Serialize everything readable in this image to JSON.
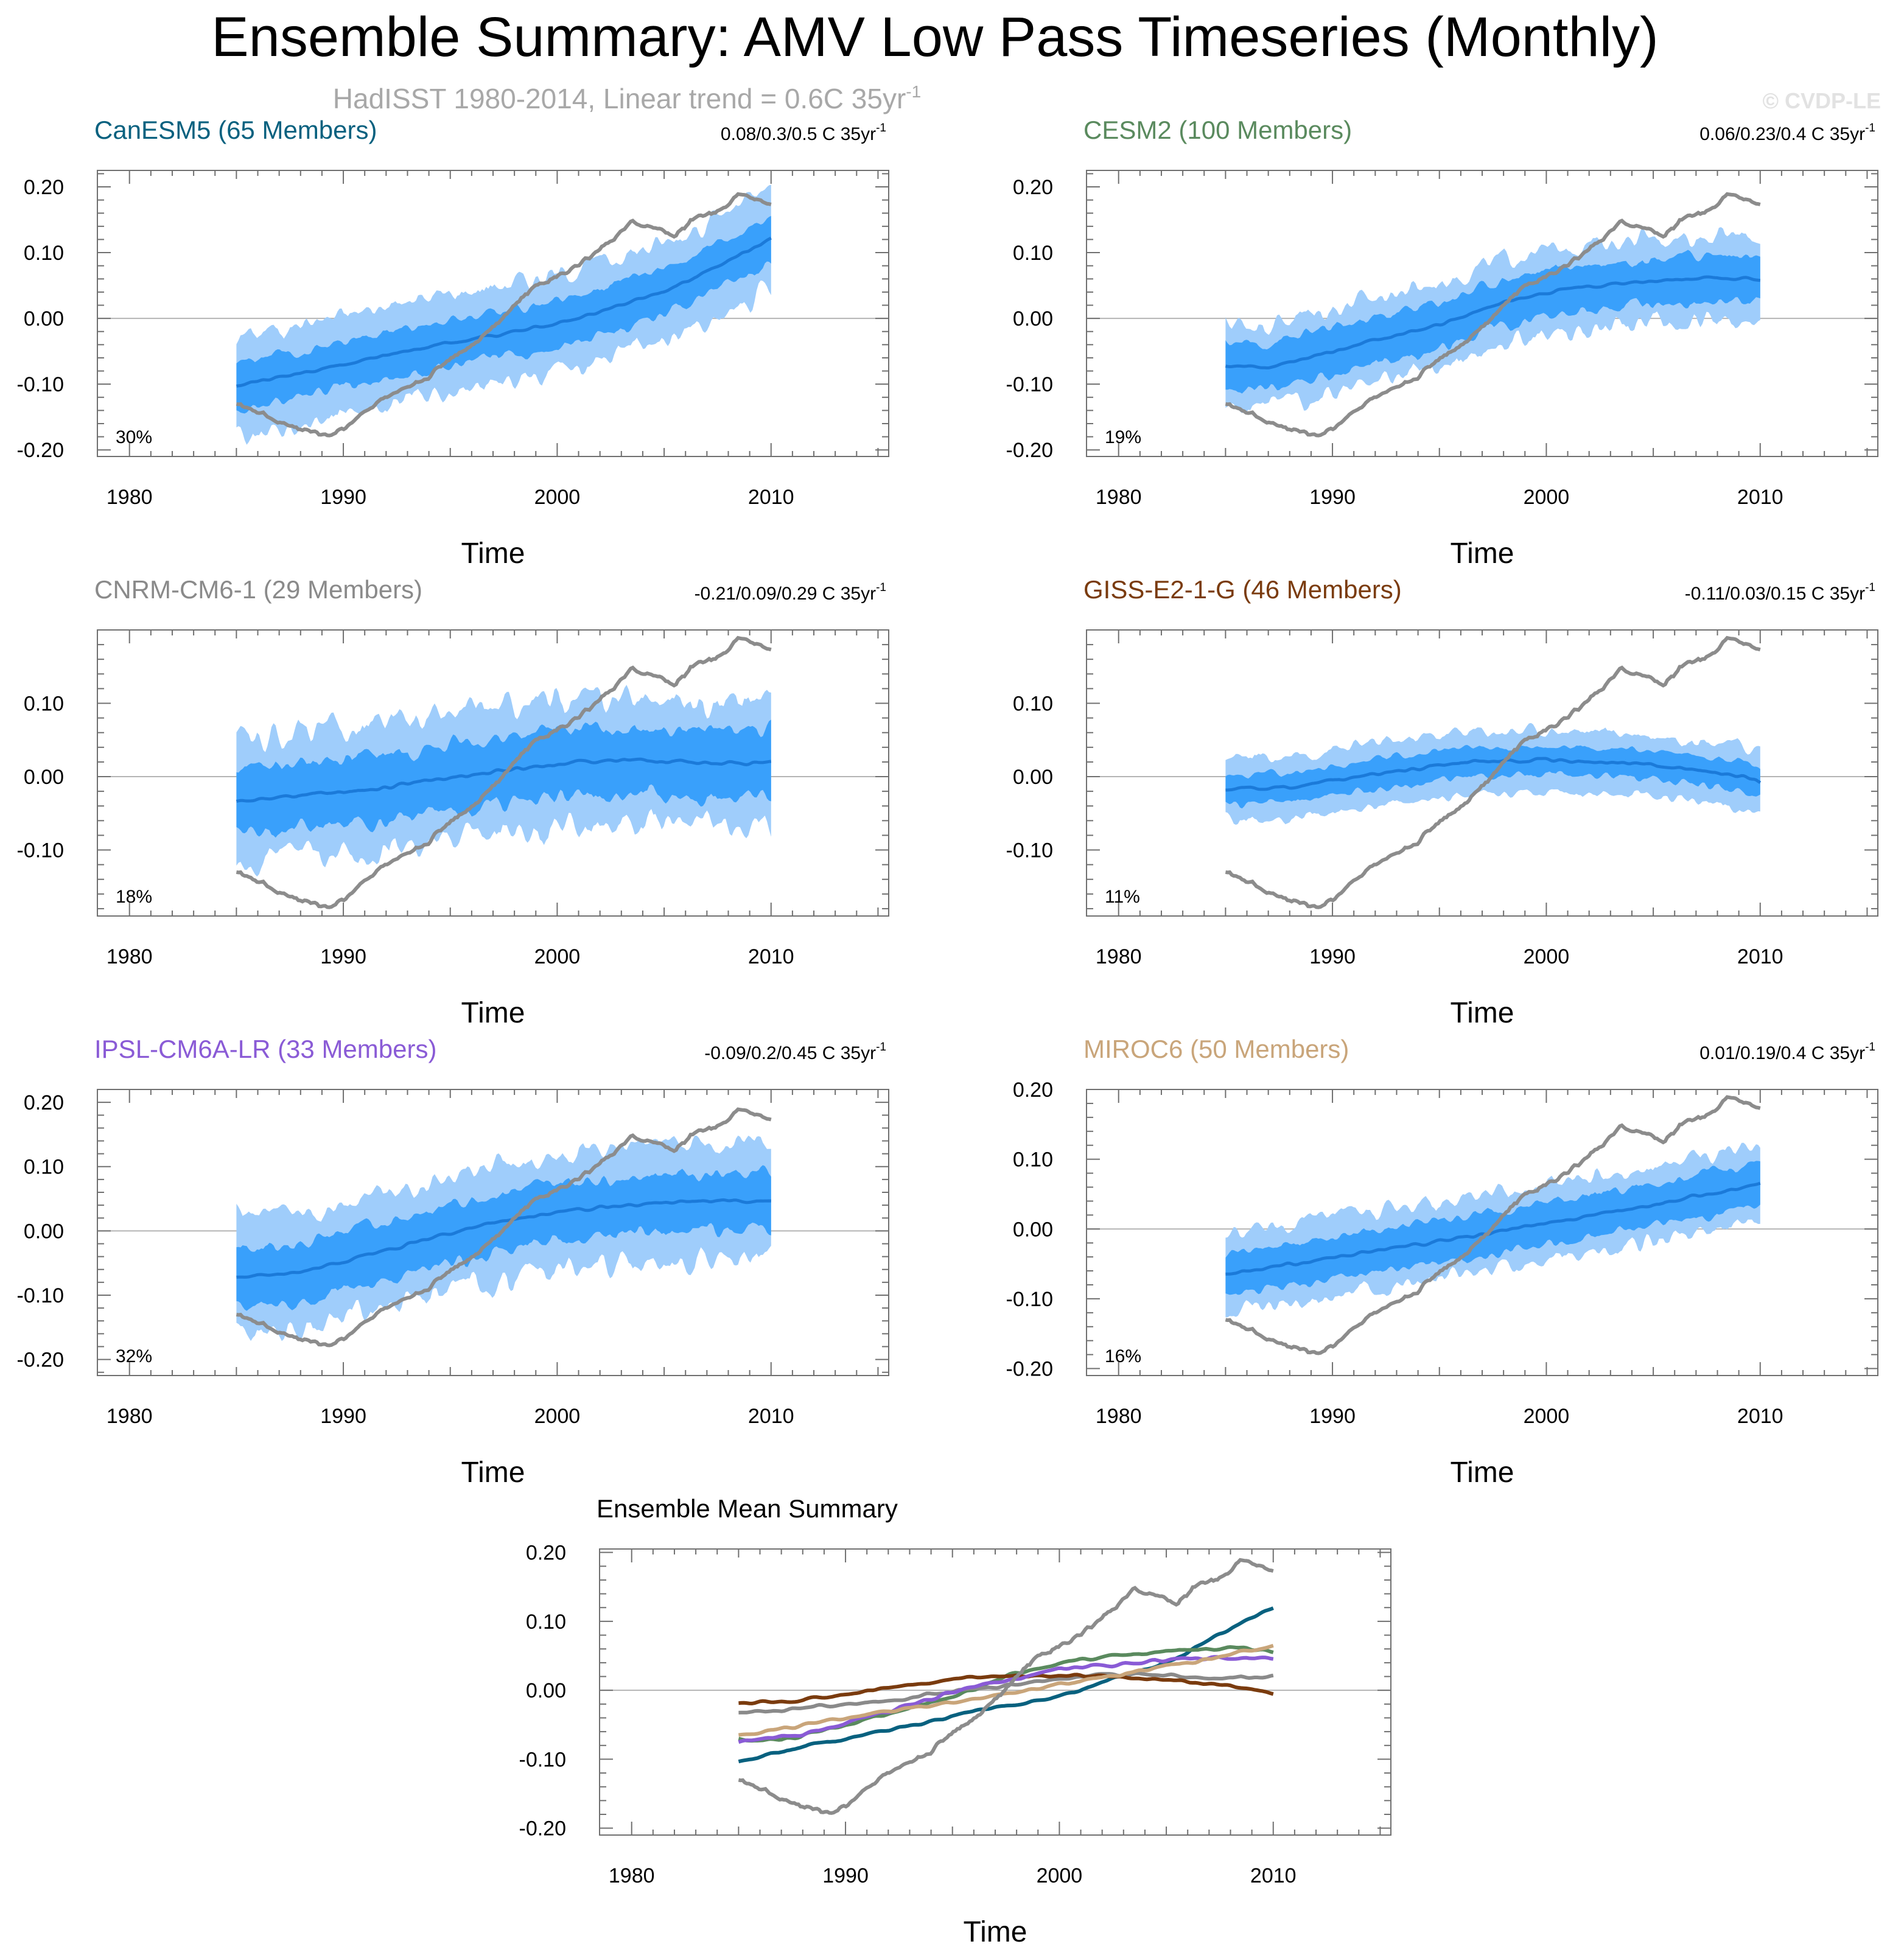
{
  "figure": {
    "title": "Ensemble Summary: AMV Low Pass Timeseries (Monthly)",
    "subtitle_prefix": "HadISST 1980-2014, Linear trend = 0.6C 35yr",
    "subtitle_sup": "-1",
    "watermark": "© CVDP-LE"
  },
  "colors": {
    "band_outer": "#9fcdfb",
    "band_inner": "#39a0fb",
    "ens_mean_line": "#1b7ad9",
    "obs_line": "#8c8c8c",
    "zero_line": "#b4b4b4",
    "axis": "#707070"
  },
  "chart_data": [
    {
      "type": "area",
      "title": "CanESM5 (65 Members)",
      "title_color": "#08617f",
      "trend_text": "0.08/0.3/0.5 C 35yr",
      "trend_sup": "-1",
      "percent_label": "30%",
      "xlabel": "Time",
      "xlim": [
        1978.5,
        2015.5
      ],
      "ylim": [
        -0.21,
        0.225
      ],
      "x_ticks": [
        1980,
        1990,
        2000,
        2010
      ],
      "y_ticks": [
        0.2,
        0.1,
        0.0,
        -0.1,
        -0.2
      ],
      "x_start": 1985,
      "x_end": 2010,
      "mean_points": [
        [
          1985,
          -0.102
        ],
        [
          1990,
          -0.07
        ],
        [
          1995,
          -0.037
        ],
        [
          2000,
          -0.008
        ],
        [
          2005,
          0.04
        ],
        [
          2010,
          0.12
        ]
      ],
      "inner_half_width": 0.035,
      "outer_half_width": 0.075
    },
    {
      "type": "area",
      "title": "CESM2 (100 Members)",
      "title_color": "#5a8a5e",
      "trend_text": "0.06/0.23/0.4 C 35yr",
      "trend_sup": "-1",
      "percent_label": "19%",
      "xlabel": "Time",
      "xlim": [
        1978.5,
        2015.5
      ],
      "ylim": [
        -0.21,
        0.225
      ],
      "x_ticks": [
        1980,
        1990,
        2000,
        2010
      ],
      "y_ticks": [
        0.2,
        0.1,
        0.0,
        -0.1,
        -0.2
      ],
      "x_start": 1985,
      "x_end": 2010,
      "mean_points": [
        [
          1985,
          -0.072
        ],
        [
          1987,
          -0.073
        ],
        [
          1990,
          -0.05
        ],
        [
          1995,
          -0.01
        ],
        [
          1998,
          0.025
        ],
        [
          2001,
          0.045
        ],
        [
          2005,
          0.057
        ],
        [
          2008,
          0.062
        ],
        [
          2010,
          0.058
        ]
      ],
      "inner_half_width": 0.035,
      "outer_half_width": 0.065
    },
    {
      "type": "area",
      "title": "CNRM-CM6-1 (29 Members)",
      "title_color": "#8a8a8a",
      "trend_text": "-0.21/0.09/0.29 C 35yr",
      "trend_sup": "-1",
      "percent_label": "18%",
      "xlabel": "Time",
      "xlim": [
        1978.5,
        2015.5
      ],
      "ylim": [
        -0.19,
        0.2
      ],
      "x_ticks": [
        1980,
        1990,
        2000,
        2010
      ],
      "y_ticks": [
        0.1,
        0.0,
        -0.1
      ],
      "x_start": 1985,
      "x_end": 2010,
      "mean_points": [
        [
          1985,
          -0.033
        ],
        [
          1988,
          -0.025
        ],
        [
          1992,
          -0.015
        ],
        [
          1996,
          0.002
        ],
        [
          2000,
          0.018
        ],
        [
          2004,
          0.024
        ],
        [
          2007,
          0.018
        ],
        [
          2010,
          0.019
        ]
      ],
      "inner_half_width": 0.045,
      "outer_half_width": 0.085
    },
    {
      "type": "area",
      "title": "GISS-E2-1-G (46 Members)",
      "title_color": "#7a3b0e",
      "trend_text": "-0.11/0.03/0.15 C 35yr",
      "trend_sup": "-1",
      "percent_label": "11%",
      "xlabel": "Time",
      "xlim": [
        1978.5,
        2015.5
      ],
      "ylim": [
        -0.19,
        0.2
      ],
      "x_ticks": [
        1980,
        1990,
        2000,
        2010
      ],
      "y_ticks": [
        0.1,
        0.0,
        -0.1
      ],
      "x_start": 1985,
      "x_end": 2010,
      "mean_points": [
        [
          1985,
          -0.018
        ],
        [
          1988,
          -0.015
        ],
        [
          1992,
          0.003
        ],
        [
          1996,
          0.019
        ],
        [
          2000,
          0.022
        ],
        [
          2004,
          0.018
        ],
        [
          2008,
          0.006
        ],
        [
          2010,
          -0.006
        ]
      ],
      "inner_half_width": 0.02,
      "outer_half_width": 0.042
    },
    {
      "type": "area",
      "title": "IPSL-CM6A-LR (33 Members)",
      "title_color": "#8a5bd6",
      "trend_text": "-0.09/0.2/0.45 C 35yr",
      "trend_sup": "-1",
      "percent_label": "32%",
      "xlabel": "Time",
      "xlim": [
        1978.5,
        2015.5
      ],
      "ylim": [
        -0.225,
        0.22
      ],
      "x_ticks": [
        1980,
        1990,
        2000,
        2010
      ],
      "y_ticks": [
        0.2,
        0.1,
        0.0,
        -0.1,
        -0.2
      ],
      "x_start": 1985,
      "x_end": 2010,
      "mean_points": [
        [
          1985,
          -0.073
        ],
        [
          1988,
          -0.065
        ],
        [
          1992,
          -0.03
        ],
        [
          1996,
          0.005
        ],
        [
          2000,
          0.03
        ],
        [
          2004,
          0.042
        ],
        [
          2007,
          0.047
        ],
        [
          2010,
          0.047
        ]
      ],
      "inner_half_width": 0.045,
      "outer_half_width": 0.09
    },
    {
      "type": "area",
      "title": "MIROC6 (50 Members)",
      "title_color": "#c9a57a",
      "trend_text": "0.01/0.19/0.4 C 35yr",
      "trend_sup": "-1",
      "percent_label": "16%",
      "xlabel": "Time",
      "xlim": [
        1978.5,
        2015.5
      ],
      "ylim": [
        -0.21,
        0.2
      ],
      "x_ticks": [
        1980,
        1990,
        2000,
        2010
      ],
      "y_ticks": [
        0.2,
        0.1,
        0.0,
        -0.1,
        -0.2
      ],
      "x_start": 1985,
      "x_end": 2010,
      "mean_points": [
        [
          1985,
          -0.066
        ],
        [
          1990,
          -0.04
        ],
        [
          1995,
          -0.018
        ],
        [
          2000,
          0.008
        ],
        [
          2005,
          0.035
        ],
        [
          2010,
          0.064
        ]
      ],
      "inner_half_width": 0.03,
      "outer_half_width": 0.055
    },
    {
      "type": "line",
      "title": "Ensemble Mean Summary",
      "title_color": "#000000",
      "trend_text": "",
      "trend_sup": "",
      "percent_label": "",
      "xlabel": "Time",
      "xlim": [
        1978.5,
        2015.5
      ],
      "ylim": [
        -0.21,
        0.205
      ],
      "x_ticks": [
        1980,
        1990,
        2000,
        2010
      ],
      "y_ticks": [
        0.2,
        0.1,
        0.0,
        -0.1,
        -0.2
      ],
      "series": [
        {
          "name": "CanESM5",
          "color": "#08617f",
          "points": [
            [
              1985,
              -0.102
            ],
            [
              1990,
              -0.07
            ],
            [
              1995,
              -0.037
            ],
            [
              2000,
              -0.008
            ],
            [
              2005,
              0.04
            ],
            [
              2010,
              0.12
            ]
          ]
        },
        {
          "name": "CESM2",
          "color": "#5a8a5e",
          "points": [
            [
              1985,
              -0.072
            ],
            [
              1987,
              -0.073
            ],
            [
              1990,
              -0.05
            ],
            [
              1995,
              -0.01
            ],
            [
              1998,
              0.025
            ],
            [
              2001,
              0.045
            ],
            [
              2005,
              0.057
            ],
            [
              2008,
              0.062
            ],
            [
              2010,
              0.058
            ]
          ]
        },
        {
          "name": "CNRM-CM6-1",
          "color": "#8a8a8a",
          "points": [
            [
              1985,
              -0.033
            ],
            [
              1988,
              -0.025
            ],
            [
              1992,
              -0.015
            ],
            [
              1996,
              0.002
            ],
            [
              2000,
              0.018
            ],
            [
              2004,
              0.024
            ],
            [
              2007,
              0.018
            ],
            [
              2010,
              0.019
            ]
          ]
        },
        {
          "name": "GISS-E2-1-G",
          "color": "#7a3b0e",
          "points": [
            [
              1985,
              -0.018
            ],
            [
              1988,
              -0.015
            ],
            [
              1992,
              0.003
            ],
            [
              1996,
              0.019
            ],
            [
              2000,
              0.022
            ],
            [
              2004,
              0.018
            ],
            [
              2008,
              0.006
            ],
            [
              2010,
              -0.006
            ]
          ]
        },
        {
          "name": "IPSL-CM6A-LR",
          "color": "#8a5bd6",
          "points": [
            [
              1985,
              -0.073
            ],
            [
              1988,
              -0.065
            ],
            [
              1992,
              -0.03
            ],
            [
              1996,
              0.005
            ],
            [
              2000,
              0.03
            ],
            [
              2004,
              0.042
            ],
            [
              2007,
              0.047
            ],
            [
              2010,
              0.047
            ]
          ]
        },
        {
          "name": "MIROC6",
          "color": "#c9a57a",
          "points": [
            [
              1985,
              -0.066
            ],
            [
              1990,
              -0.04
            ],
            [
              1995,
              -0.018
            ],
            [
              2000,
              0.008
            ],
            [
              2005,
              0.035
            ],
            [
              2010,
              0.064
            ]
          ]
        }
      ]
    }
  ],
  "observations": {
    "name": "HadISST",
    "points": [
      [
        1985,
        -0.128
      ],
      [
        1986,
        -0.142
      ],
      [
        1987,
        -0.158
      ],
      [
        1988,
        -0.168
      ],
      [
        1989.2,
        -0.178
      ],
      [
        1990,
        -0.168
      ],
      [
        1991,
        -0.14
      ],
      [
        1992,
        -0.12
      ],
      [
        1993,
        -0.108
      ],
      [
        1994,
        -0.088
      ],
      [
        1995,
        -0.06
      ],
      [
        1996,
        -0.04
      ],
      [
        1997,
        -0.012
      ],
      [
        1998,
        0.02
      ],
      [
        1999,
        0.05
      ],
      [
        2000,
        0.065
      ],
      [
        2001,
        0.082
      ],
      [
        2002,
        0.105
      ],
      [
        2003.5,
        0.145
      ],
      [
        2004.5,
        0.138
      ],
      [
        2005.5,
        0.125
      ],
      [
        2006.5,
        0.155
      ],
      [
        2007.5,
        0.16
      ],
      [
        2008.5,
        0.188
      ],
      [
        2009.3,
        0.182
      ],
      [
        2010,
        0.172
      ]
    ]
  }
}
